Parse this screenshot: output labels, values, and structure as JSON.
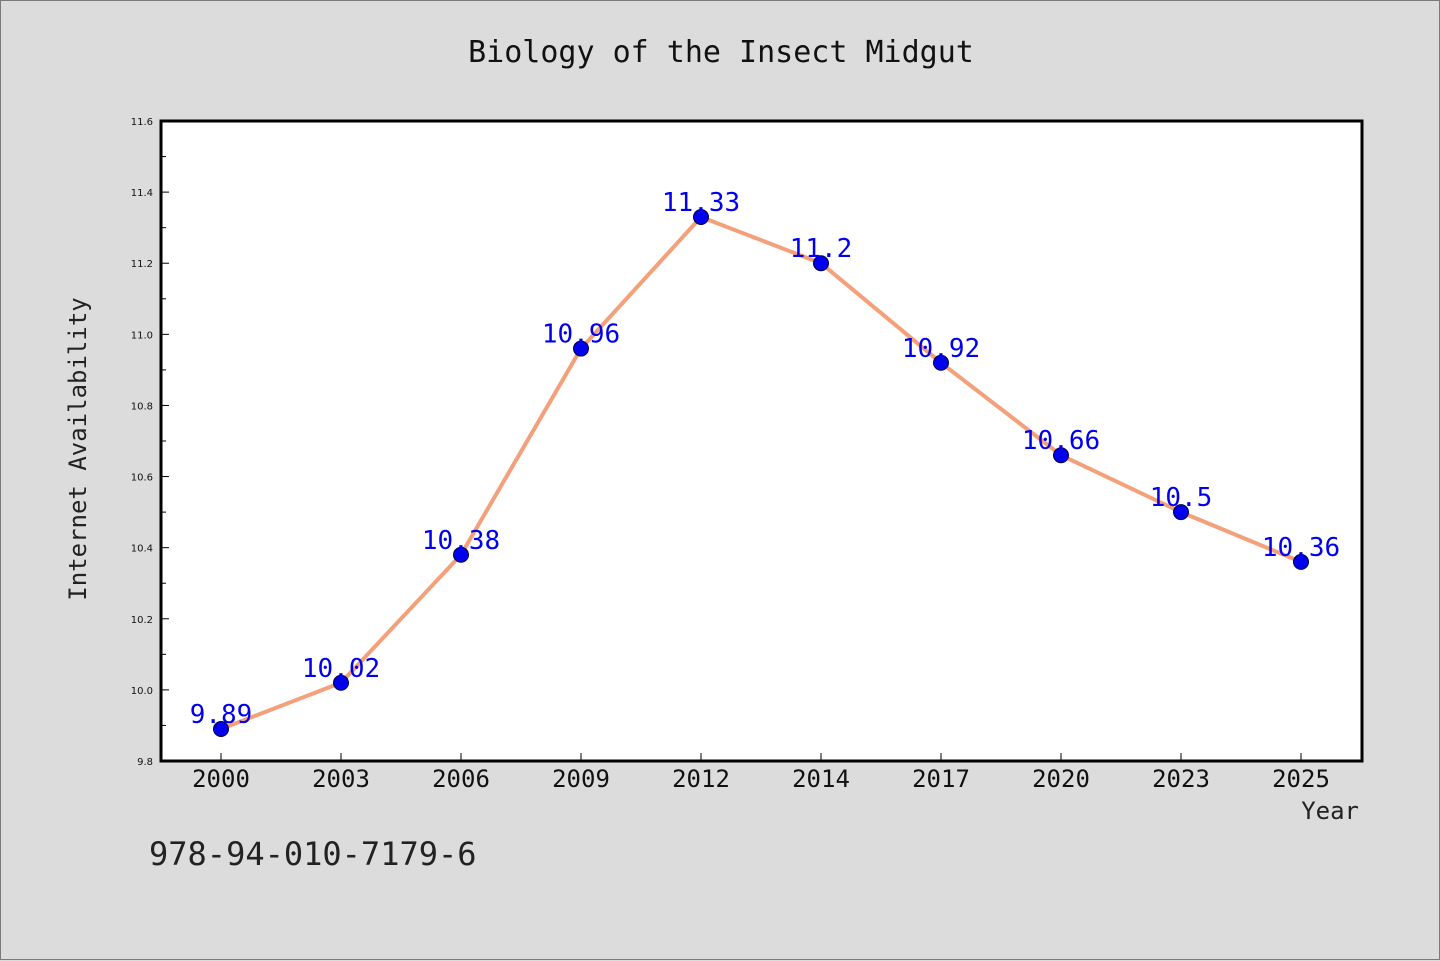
{
  "chart_data": {
    "type": "line",
    "title": "Biology of the Insect Midgut",
    "xlabel": "Year",
    "ylabel": "Internet Availability",
    "categories": [
      "2000",
      "2003",
      "2006",
      "2009",
      "2012",
      "2014",
      "2017",
      "2020",
      "2023",
      "2025"
    ],
    "series": [
      {
        "values": [
          9.89,
          10.02,
          10.38,
          10.96,
          11.33,
          11.2,
          10.92,
          10.66,
          10.5,
          10.36
        ],
        "labels": [
          "9.89",
          "10.02",
          "10.38",
          "10.96",
          "11.33",
          "11.2",
          "10.92",
          "10.66",
          "10.5",
          "10.36"
        ]
      }
    ],
    "ylim": [
      9.8,
      11.6
    ],
    "yticks": [
      "9.8",
      "10.0",
      "10.2",
      "10.4",
      "10.6",
      "10.8",
      "11.0",
      "11.2",
      "11.4",
      "11.6"
    ],
    "grid": false,
    "colors": {
      "line": "#f4a07a",
      "marker": "#0000ee",
      "label": "#0000ee",
      "axes": "#000000"
    }
  },
  "footer_text": "978-94-010-7179-6"
}
